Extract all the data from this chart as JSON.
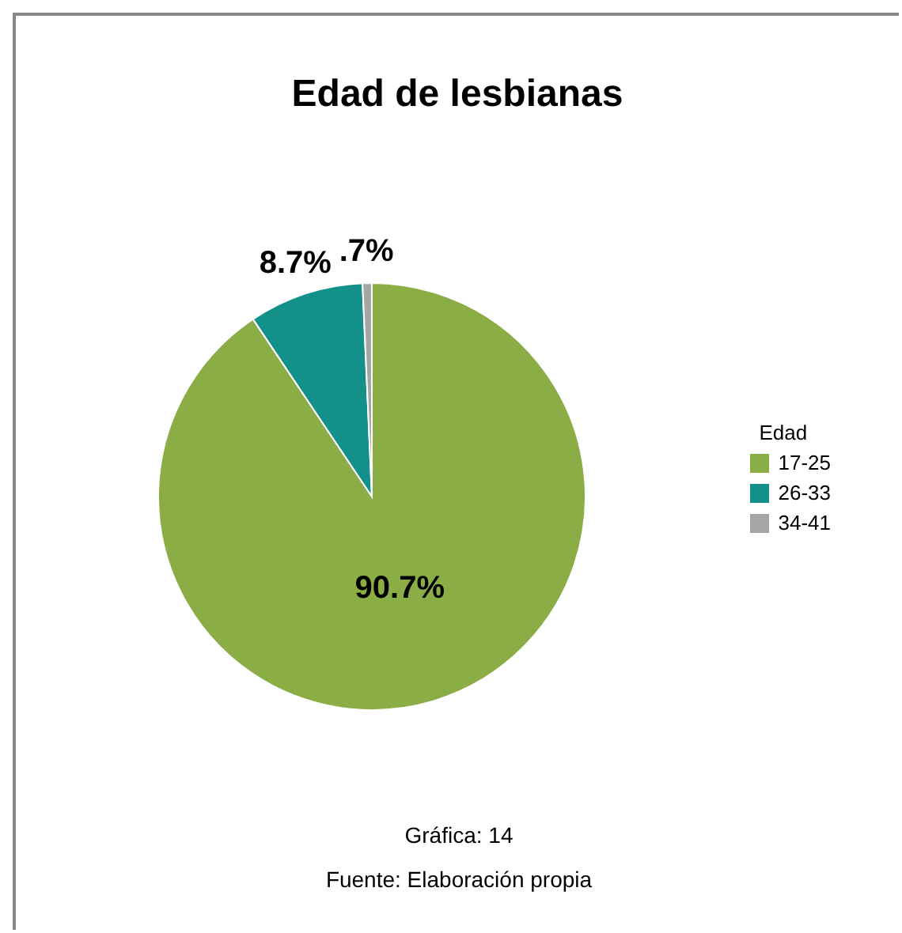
{
  "chart_data": {
    "type": "pie",
    "title": "Edad de lesbianas",
    "legend_title": "Edad",
    "legend": "right",
    "categories": [
      "17-25",
      "26-33",
      "34-41"
    ],
    "values": [
      90.7,
      8.7,
      0.7
    ],
    "value_labels": [
      "90.7%",
      "8.7%",
      ".7%"
    ],
    "colors": [
      "#8aad45",
      "#14908a",
      "#a6a6a6"
    ],
    "annotations": [
      "Gráfica: 14",
      "Fuente: Elaboración propia"
    ]
  }
}
